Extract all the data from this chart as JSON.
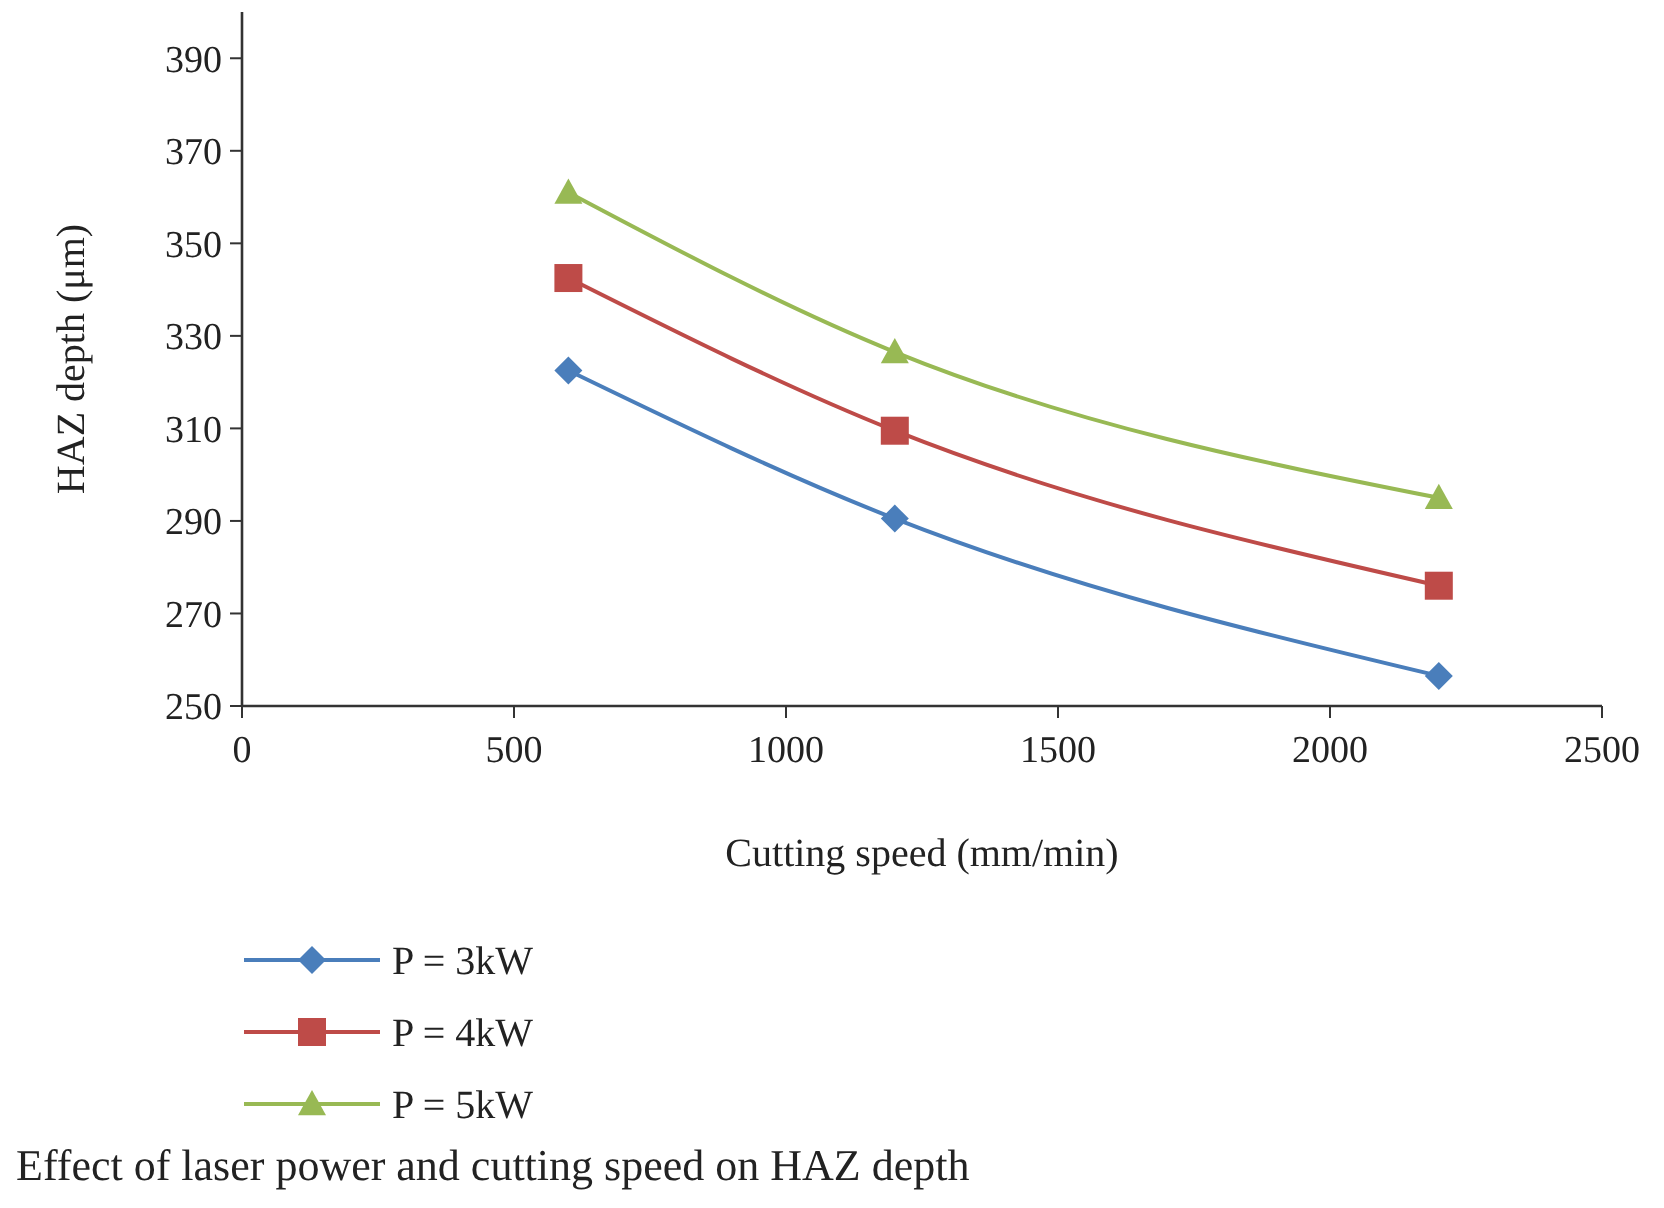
{
  "chart_data": {
    "type": "line",
    "xlabel": "Cutting speed (mm/min)",
    "ylabel": "HAZ depth (μm)",
    "x": [
      600,
      1200,
      2200
    ],
    "series": [
      {
        "name": "P = 3kW",
        "color": "#4a7ebb",
        "values": [
          322.5,
          290.5,
          256.5
        ],
        "marker": "diamond"
      },
      {
        "name": "P = 4kW",
        "color": "#be4b48",
        "values": [
          342.5,
          309.5,
          276
        ],
        "marker": "square"
      },
      {
        "name": "P = 5kW",
        "color": "#98b954",
        "values": [
          361,
          326.5,
          295
        ],
        "marker": "triangle"
      }
    ],
    "xlim": [
      0,
      2500
    ],
    "xticks": [
      0,
      500,
      1000,
      1500,
      2000,
      2500
    ],
    "ylim": [
      250,
      400
    ],
    "yticks": [
      250,
      270,
      290,
      310,
      330,
      350,
      370,
      390
    ],
    "grid": false,
    "legend": "bottom",
    "annotations": [
      "Effect of laser power and cutting speed on HAZ depth"
    ]
  }
}
